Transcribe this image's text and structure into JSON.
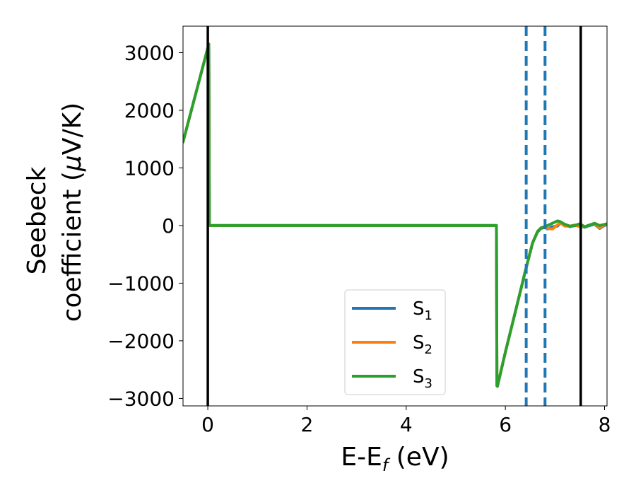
{
  "chart_data": {
    "type": "line",
    "xlabel": {
      "main": "E-E",
      "sub": "f",
      "unit": " (eV)"
    },
    "ylabel": {
      "line1": "Seebeck",
      "line2_prefix": "coefficient  (",
      "mu": "μ",
      "line2_suffix": "V/K)"
    },
    "xlim": [
      -0.5,
      8.05
    ],
    "ylim": [
      -3130,
      3460
    ],
    "xticks": [
      0,
      2,
      4,
      6,
      8
    ],
    "yticks": [
      -3000,
      -2000,
      -1000,
      0,
      1000,
      2000,
      3000
    ],
    "xtick_labels": [
      "0",
      "2",
      "4",
      "6",
      "8"
    ],
    "ytick_labels": [
      "−3000",
      "−2000",
      "−1000",
      "0",
      "1000",
      "2000",
      "3000"
    ],
    "vlines": [
      {
        "x": 0.0,
        "style": "solid",
        "color": "#000000"
      },
      {
        "x": 7.52,
        "style": "solid",
        "color": "#000000"
      },
      {
        "x": 6.42,
        "style": "dashed",
        "color": "#1f77b4"
      },
      {
        "x": 6.8,
        "style": "dashed",
        "color": "#1f77b4"
      }
    ],
    "legend": {
      "placement": "lower-center"
    },
    "series": [
      {
        "name": "S",
        "sub": "1",
        "color": "#1f77b4",
        "x": [
          -0.5,
          0.02,
          0.03,
          5.82,
          5.83,
          5.84,
          6.0,
          6.2,
          6.4,
          6.55,
          6.65,
          6.72,
          6.8,
          6.85,
          6.95,
          7.05,
          7.1,
          7.2,
          7.3,
          7.4,
          7.5,
          7.6,
          7.7,
          7.8,
          7.9,
          8.0,
          8.05
        ],
        "y": [
          1450,
          3150,
          0,
          0,
          -2780,
          -2790,
          -2200,
          -1500,
          -800,
          -300,
          -110,
          -50,
          -30,
          -60,
          -20,
          -10,
          40,
          10,
          -20,
          0,
          -10,
          -30,
          0,
          20,
          -50,
          0,
          20
        ]
      },
      {
        "name": "S",
        "sub": "2",
        "color": "#ff7f0e",
        "x": [
          -0.5,
          0.02,
          0.03,
          5.82,
          5.83,
          5.84,
          6.0,
          6.2,
          6.4,
          6.55,
          6.65,
          6.72,
          6.8,
          6.85,
          6.95,
          7.05,
          7.1,
          7.2,
          7.3,
          7.4,
          7.5,
          7.6,
          7.7,
          7.8,
          7.9,
          8.0,
          8.05
        ],
        "y": [
          1450,
          3150,
          0,
          0,
          -2780,
          -2790,
          -2200,
          -1500,
          -800,
          -300,
          -100,
          -40,
          -20,
          -50,
          -60,
          10,
          50,
          -10,
          -10,
          10,
          -20,
          -20,
          10,
          30,
          -40,
          10,
          30
        ]
      },
      {
        "name": "S",
        "sub": "3",
        "color": "#2ca02c",
        "x": [
          -0.5,
          0.02,
          0.03,
          5.82,
          5.83,
          5.84,
          6.0,
          6.2,
          6.4,
          6.55,
          6.65,
          6.72,
          6.8,
          6.85,
          6.95,
          7.05,
          7.1,
          7.2,
          7.3,
          7.4,
          7.5,
          7.6,
          7.7,
          7.8,
          7.9,
          8.0,
          8.05
        ],
        "y": [
          1450,
          3150,
          0,
          0,
          -2780,
          -2790,
          -2200,
          -1500,
          -800,
          -300,
          -100,
          -40,
          -20,
          0,
          40,
          80,
          70,
          20,
          -10,
          0,
          30,
          -20,
          10,
          40,
          0,
          20,
          30
        ]
      }
    ]
  }
}
